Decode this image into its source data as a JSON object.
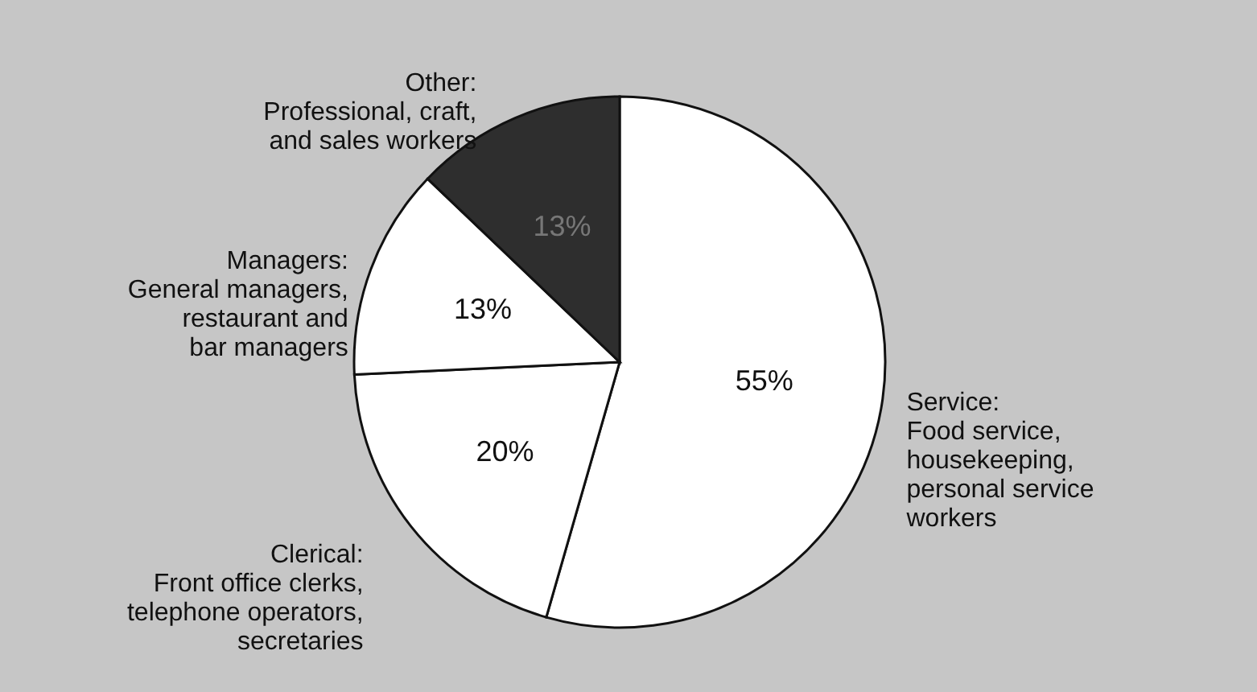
{
  "chart_data": {
    "type": "pie",
    "categories": [
      "Service:\nFood service,\nhousekeeping,\npersonal service\nworkers",
      "Clerical:\nFront office clerks,\ntelephone operators,\nsecretaries",
      "Managers:\nGeneral managers,\nrestaurant and\nbar managers",
      "Other:\nProfessional, craft,\nand sales workers"
    ],
    "values": [
      55,
      20,
      13,
      13
    ],
    "value_labels": [
      "55%",
      "20%",
      "13%",
      "13%"
    ],
    "colors": [
      "#ffffff",
      "#ffffff",
      "#ffffff",
      "#2e2e2e"
    ],
    "legend": false
  }
}
